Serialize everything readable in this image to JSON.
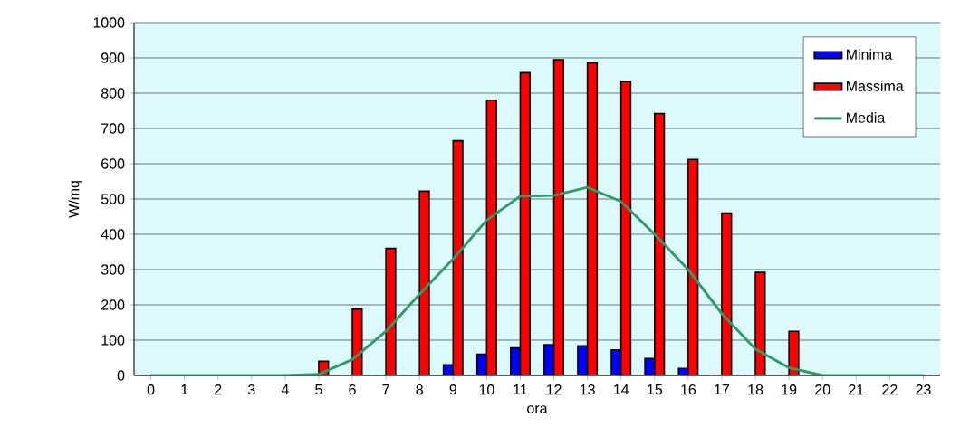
{
  "chart_data": {
    "type": "bar",
    "xlabel": "ora",
    "ylabel": "W/mq",
    "categories": [
      "0",
      "1",
      "2",
      "3",
      "4",
      "5",
      "6",
      "7",
      "8",
      "9",
      "10",
      "11",
      "12",
      "13",
      "14",
      "15",
      "16",
      "17",
      "18",
      "19",
      "20",
      "21",
      "22",
      "23"
    ],
    "series": [
      {
        "name": "Minima",
        "color": "#0000ff",
        "values": [
          0,
          0,
          0,
          0,
          0,
          0,
          0,
          0,
          0,
          30,
          60,
          78,
          87,
          84,
          72,
          48,
          20,
          0,
          0,
          0,
          0,
          0,
          0,
          0
        ]
      },
      {
        "name": "Massima",
        "color": "#ff0000",
        "values": [
          0,
          0,
          0,
          0,
          0,
          40,
          188,
          360,
          522,
          665,
          780,
          858,
          895,
          886,
          833,
          742,
          612,
          460,
          292,
          125,
          0,
          0,
          0,
          0
        ]
      },
      {
        "name": "Media",
        "type": "line",
        "color": "#339966",
        "values": [
          0,
          0,
          0,
          0,
          0,
          3,
          45,
          125,
          230,
          330,
          440,
          508,
          510,
          533,
          493,
          400,
          300,
          175,
          75,
          22,
          0,
          0,
          0,
          0
        ]
      }
    ],
    "ylim": [
      0,
      1000
    ],
    "yticks": [
      0,
      100,
      200,
      300,
      400,
      500,
      600,
      700,
      800,
      900,
      1000
    ],
    "grid": "y",
    "legend": "top right"
  }
}
